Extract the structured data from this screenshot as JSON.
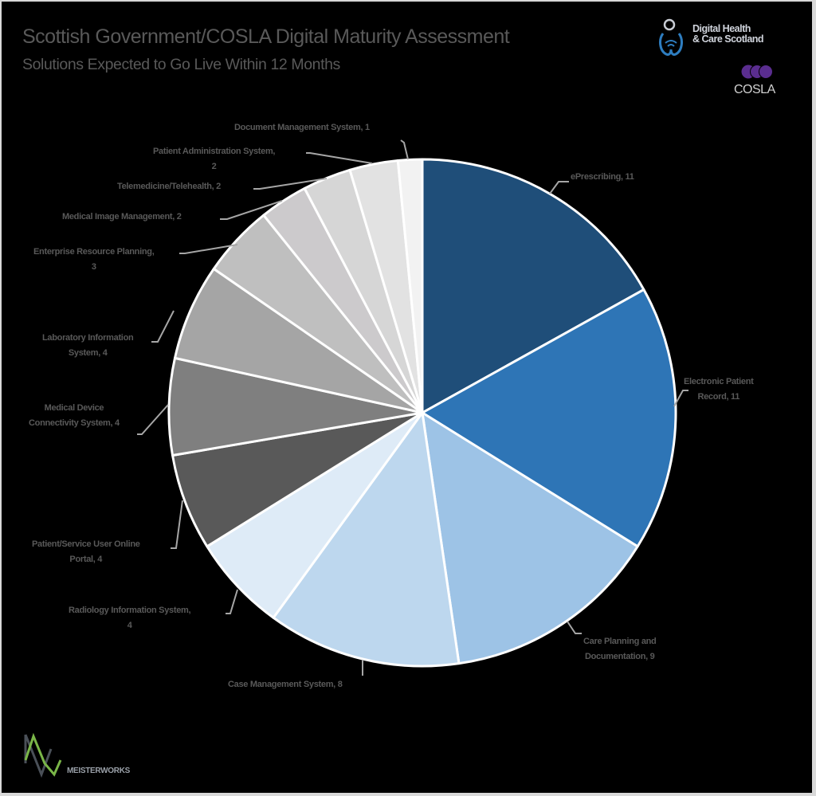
{
  "header": {
    "title": "Scottish Government/COSLA Digital Maturity Assessment",
    "subtitle": "Solutions Expected to Go Live Within 12 Months"
  },
  "logos": {
    "dhcs_line1": "Digital Health",
    "dhcs_line2": "& Care Scotland",
    "cosla": "COSLA",
    "meisterworks": "MEISTERWORKS"
  },
  "labels": {
    "eprescribing": "ePrescribing, 11",
    "epr_1": "Electronic Patient",
    "epr_2": "Record, 11",
    "care_1": "Care Planning and",
    "care_2": "Documentation, 9",
    "case": "Case Management System, 8",
    "ris_1": "Radiology Information System,",
    "ris_2": "4",
    "portal_1": "Patient/Service User Online",
    "portal_2": "Portal, 4",
    "mdcs_1": "Medical Device",
    "mdcs_2": "Connectivity System, 4",
    "lis_1": "Laboratory Information",
    "lis_2": "System, 4",
    "erp_1": "Enterprise Resource Planning,",
    "erp_2": "3",
    "mim": "Medical Image Management, 2",
    "tele": "Telemedicine/Telehealth, 2",
    "pas_1": "Patient Administration System,",
    "pas_2": "2",
    "dms": "Document Management System, 1"
  },
  "chart_data": {
    "type": "pie",
    "title": "Scottish Government/COSLA Digital Maturity Assessment",
    "subtitle": "Solutions Expected to Go Live Within 12 Months",
    "categories": [
      "ePrescribing",
      "Electronic Patient Record",
      "Care Planning and Documentation",
      "Case Management System",
      "Radiology Information System",
      "Patient/Service User Online Portal",
      "Medical Device Connectivity System",
      "Laboratory Information System",
      "Enterprise Resource Planning",
      "Medical Image Management",
      "Telemedicine/Telehealth",
      "Patient Administration System",
      "Document Management System"
    ],
    "values": [
      11,
      11,
      9,
      8,
      4,
      4,
      4,
      4,
      3,
      2,
      2,
      2,
      1
    ],
    "colors": [
      "#1f4e79",
      "#2e75b6",
      "#9dc3e6",
      "#bdd7ee",
      "#deebf7",
      "#595959",
      "#7f7f7f",
      "#a5a5a5",
      "#bfbfbf",
      "#cccacc",
      "#d6d6d6",
      "#e2e2e2",
      "#f2f2f2"
    ],
    "start_angle_deg": 0,
    "direction": "clockwise",
    "data_labels": "category, value",
    "legend": "none"
  }
}
